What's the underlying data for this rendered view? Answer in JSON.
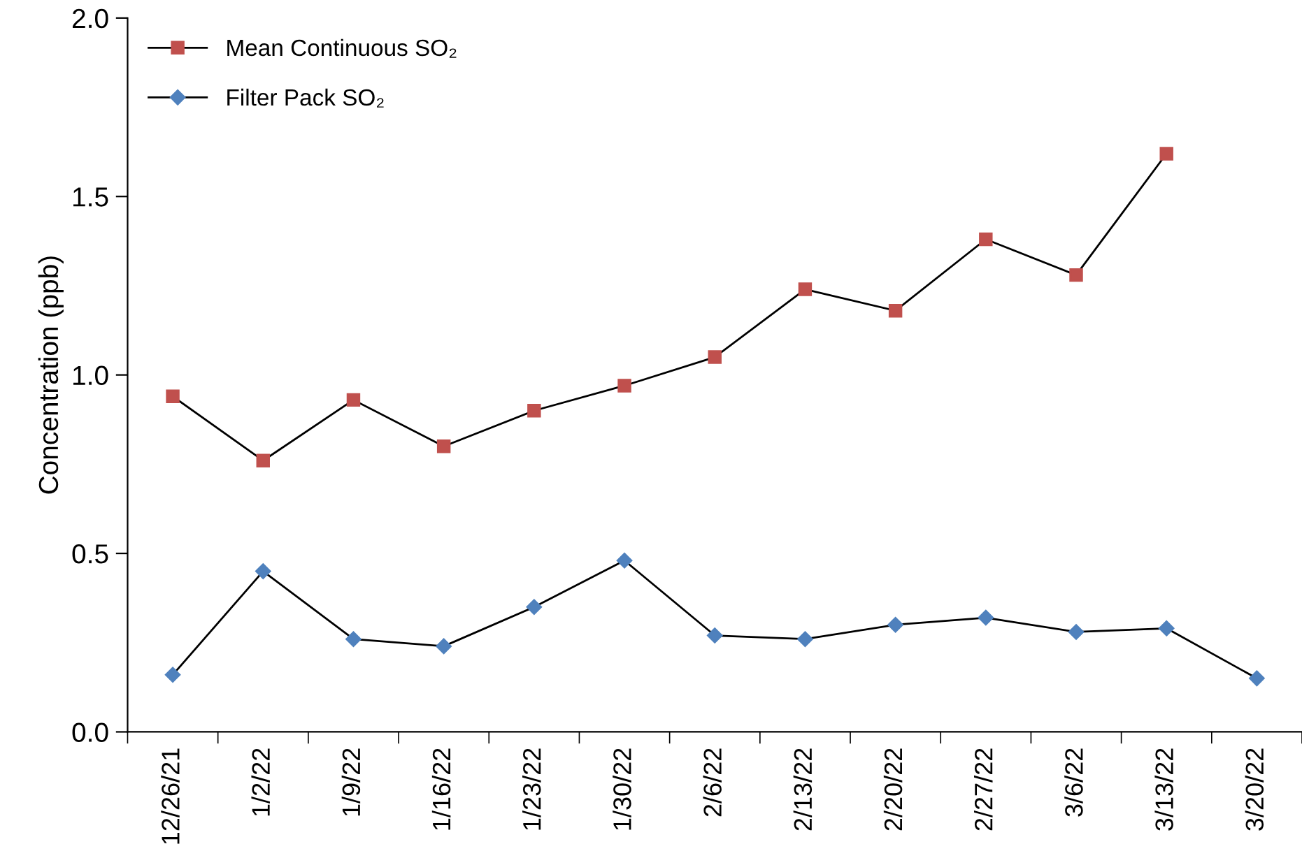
{
  "chart_data": {
    "type": "line",
    "ylabel": "Concentration (ppb)",
    "categories": [
      "12/26/21",
      "1/2/22",
      "1/9/22",
      "1/16/22",
      "1/23/22",
      "1/30/22",
      "2/6/22",
      "2/13/22",
      "2/20/22",
      "2/27/22",
      "3/6/22",
      "3/13/22",
      "3/20/22"
    ],
    "series": [
      {
        "name": "Mean Continuous SO₂",
        "color": "#c0504d",
        "marker": "square",
        "values": [
          0.94,
          0.76,
          0.93,
          0.8,
          0.9,
          0.97,
          1.05,
          1.24,
          1.18,
          1.38,
          1.28,
          1.62,
          null
        ]
      },
      {
        "name": "Filter Pack SO₂",
        "color": "#4f81bd",
        "marker": "diamond",
        "values": [
          0.16,
          0.45,
          0.26,
          0.24,
          0.35,
          0.48,
          0.27,
          0.26,
          0.3,
          0.32,
          0.28,
          0.29,
          0.15
        ]
      }
    ],
    "ylim": [
      0,
      2.0
    ],
    "yticks": [
      {
        "value": 0,
        "label": "0.0"
      },
      0.5,
      {
        "value": 1,
        "label": "1.0"
      },
      1.5,
      {
        "value": 2,
        "label": "2.0"
      }
    ],
    "grid": false,
    "legend": "top left",
    "line_style": "solid"
  }
}
